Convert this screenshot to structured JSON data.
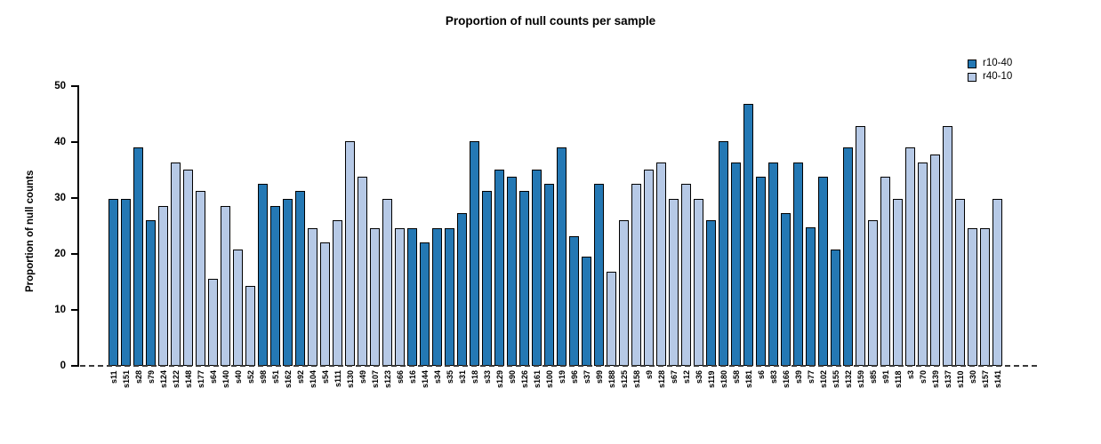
{
  "page": {
    "background": "#ffffff"
  },
  "chart_data": {
    "type": "bar",
    "title": "Proportion of null counts per sample",
    "xlabel": "",
    "ylabel": "Proportion of null counts",
    "ylim": [
      0,
      50
    ],
    "yticks": [
      0,
      10,
      20,
      30,
      40,
      50
    ],
    "grid": false,
    "legend_position": "top-right",
    "zero_line_style": "dashed",
    "bar_border_color": "#000000",
    "series": [
      {
        "name": "r10-40",
        "color": "#2478B4"
      },
      {
        "name": "r40-10",
        "color": "#B6C9E6"
      }
    ],
    "categories": [
      "s11",
      "s151",
      "s28",
      "s79",
      "s124",
      "s122",
      "s148",
      "s177",
      "s64",
      "s140",
      "s40",
      "s52",
      "s98",
      "s51",
      "s162",
      "s92",
      "s104",
      "s54",
      "s111",
      "s130",
      "s49",
      "s107",
      "s123",
      "s66",
      "s16",
      "s144",
      "s34",
      "s35",
      "s31",
      "s18",
      "s33",
      "s129",
      "s90",
      "s126",
      "s161",
      "s100",
      "s19",
      "s96",
      "s37",
      "s99",
      "s188",
      "s125",
      "s158",
      "s9",
      "s128",
      "s67",
      "s12",
      "s36",
      "s119",
      "s180",
      "s58",
      "s181",
      "s6",
      "s83",
      "s166",
      "s39",
      "s77",
      "s102",
      "s155",
      "s132",
      "s159",
      "s85",
      "s91",
      "s118",
      "s3",
      "s70",
      "s139",
      "s137",
      "s110",
      "s30",
      "s157",
      "s141"
    ],
    "values": [
      29.8,
      29.8,
      39.0,
      26.0,
      28.5,
      36.4,
      35.1,
      31.3,
      15.6,
      28.5,
      20.8,
      14.3,
      32.5,
      28.6,
      29.8,
      31.2,
      24.6,
      22.1,
      26.0,
      40.2,
      33.8,
      24.6,
      29.8,
      24.6,
      24.6,
      22.1,
      24.6,
      24.6,
      27.3,
      40.2,
      31.2,
      35.1,
      33.8,
      31.2,
      35.1,
      32.5,
      39.0,
      23.2,
      19.6,
      32.5,
      16.9,
      26.0,
      32.5,
      35.1,
      36.4,
      29.8,
      32.5,
      29.8,
      26.0,
      40.2,
      36.4,
      46.8,
      33.8,
      36.4,
      27.3,
      36.4,
      24.7,
      33.8,
      20.8,
      39.0,
      42.8,
      26.0,
      33.8,
      29.8,
      39.0,
      36.4,
      37.7,
      42.8,
      29.8,
      24.6,
      24.6,
      29.8
    ],
    "groups": [
      "r10-40",
      "r10-40",
      "r10-40",
      "r10-40",
      "r40-10",
      "r40-10",
      "r40-10",
      "r40-10",
      "r40-10",
      "r40-10",
      "r40-10",
      "r40-10",
      "r10-40",
      "r10-40",
      "r10-40",
      "r10-40",
      "r40-10",
      "r40-10",
      "r40-10",
      "r40-10",
      "r40-10",
      "r40-10",
      "r40-10",
      "r40-10",
      "r10-40",
      "r10-40",
      "r10-40",
      "r10-40",
      "r10-40",
      "r10-40",
      "r10-40",
      "r10-40",
      "r10-40",
      "r10-40",
      "r10-40",
      "r10-40",
      "r10-40",
      "r10-40",
      "r10-40",
      "r10-40",
      "r40-10",
      "r40-10",
      "r40-10",
      "r40-10",
      "r40-10",
      "r40-10",
      "r40-10",
      "r40-10",
      "r10-40",
      "r10-40",
      "r10-40",
      "r10-40",
      "r10-40",
      "r10-40",
      "r10-40",
      "r10-40",
      "r10-40",
      "r10-40",
      "r10-40",
      "r10-40",
      "r40-10",
      "r40-10",
      "r40-10",
      "r40-10",
      "r40-10",
      "r40-10",
      "r40-10",
      "r40-10",
      "r40-10",
      "r40-10",
      "r40-10",
      "r40-10"
    ]
  }
}
